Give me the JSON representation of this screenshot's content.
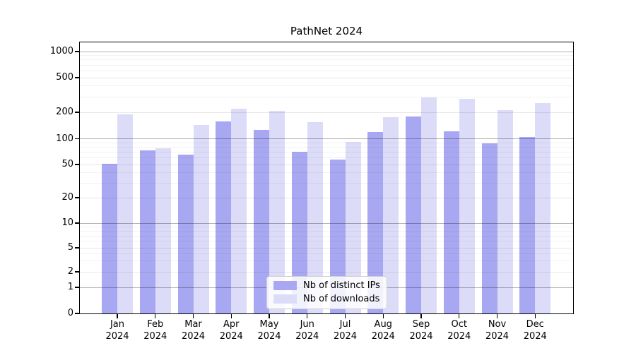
{
  "figure": {
    "title": "PathNet 2024"
  },
  "chart_data": {
    "type": "bar",
    "title": "PathNet 2024",
    "months": [
      "Jan",
      "Feb",
      "Mar",
      "Apr",
      "May",
      "Jun",
      "Jul",
      "Aug",
      "Sep",
      "Oct",
      "Nov",
      "Dec"
    ],
    "year": "2024",
    "categories": [
      "Jan 2024",
      "Feb 2024",
      "Mar 2024",
      "Apr 2024",
      "May 2024",
      "Jun 2024",
      "Jul 2024",
      "Aug 2024",
      "Sep 2024",
      "Oct 2024",
      "Nov 2024",
      "Dec 2024"
    ],
    "series": [
      {
        "name": "Nb of distinct IPs",
        "color": "#a8a8f2",
        "values": [
          51,
          73,
          65,
          156,
          127,
          70,
          57,
          120,
          178,
          122,
          88,
          105
        ]
      },
      {
        "name": "Nb of downloads",
        "color": "#dcdcf9",
        "values": [
          190,
          77,
          143,
          221,
          209,
          154,
          92,
          177,
          296,
          286,
          212,
          255
        ]
      }
    ],
    "yscale": "symlog",
    "yticks": [
      1000,
      500,
      200,
      100,
      50,
      20,
      10,
      5,
      2,
      1,
      0
    ],
    "ylim": [
      0,
      1270
    ],
    "grid": "horizontal major and minor gridlines, drawn over bars",
    "legend_position": "inside plot, lower center"
  }
}
